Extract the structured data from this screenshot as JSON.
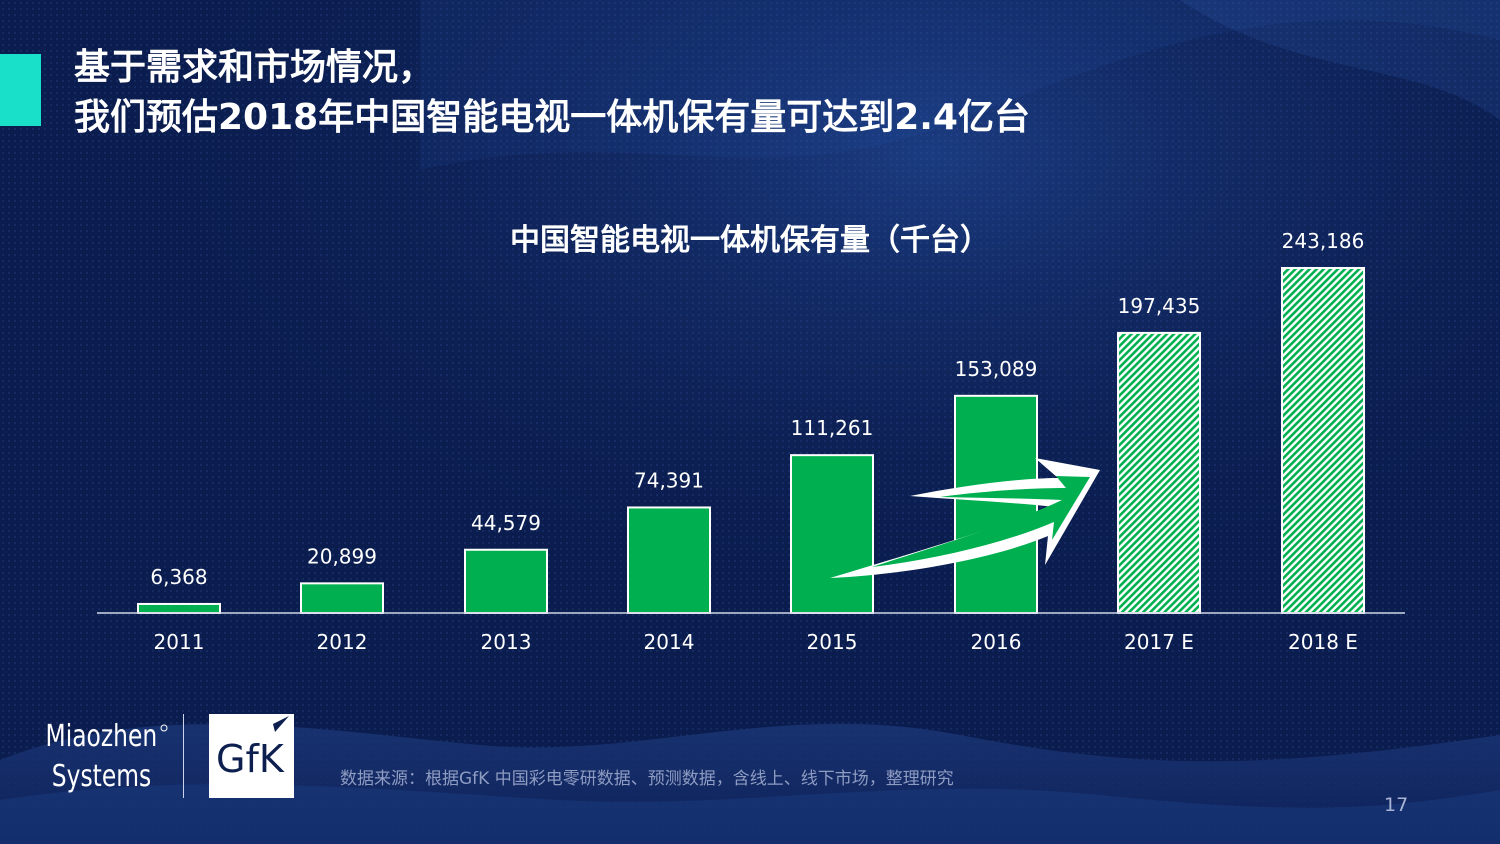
{
  "header": {
    "title_line1": "基于需求和市场情况，",
    "title_line2": "我们预估2018年中国智能电视一体机保有量可达到2.4亿台"
  },
  "chart_data": {
    "type": "bar",
    "title": "中国智能电视一体机保有量（千台）",
    "categories": [
      "2011",
      "2012",
      "2013",
      "2014",
      "2015",
      "2016",
      "2017 E",
      "2018 E"
    ],
    "values": [
      6368,
      20899,
      44579,
      74391,
      111261,
      153089,
      197435,
      243186
    ],
    "value_labels": [
      "6,368",
      "20,899",
      "44,579",
      "74,391",
      "111,261",
      "153,089",
      "197,435",
      "243,186"
    ],
    "estimated": [
      false,
      false,
      false,
      false,
      false,
      false,
      true,
      true
    ],
    "ylim": [
      0,
      243186
    ],
    "grid": false,
    "legend": "none",
    "colors": {
      "bar": "#00b050",
      "estimate_hatch": "#00b050",
      "bar_outline": "#ffffff"
    }
  },
  "logos": {
    "miaozhen_line1": "Miaozhen",
    "miaozhen_line2": "Systems",
    "gfk": "GfK"
  },
  "footer": {
    "source": "数据来源：根据GfK 中国彩电零研数据、预测数据，含线上、线下市场，整理研究",
    "page_number": "17"
  }
}
